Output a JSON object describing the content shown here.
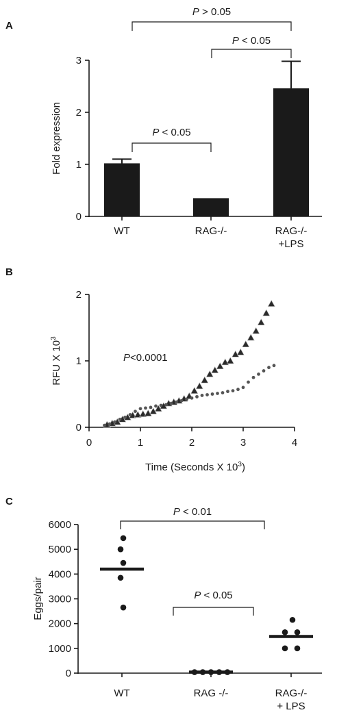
{
  "chart_data": [
    {
      "panel": "A",
      "type": "bar",
      "ylabel": "Fold expression",
      "xlabel": "",
      "ylim": [
        0,
        3
      ],
      "yticks": [
        "0",
        "1",
        "2",
        "3"
      ],
      "categories": [
        [
          "WT"
        ],
        [
          "RAG-/-"
        ],
        [
          "RAG-/-",
          "+LPS"
        ]
      ],
      "values": [
        1.02,
        0.35,
        2.46
      ],
      "errors": [
        0.08,
        0.0,
        0.52
      ],
      "comparisons": [
        {
          "from": 0,
          "to": 1,
          "label": "P < 0.05"
        },
        {
          "from": 1,
          "to": 2,
          "label": "P < 0.05"
        },
        {
          "from": 0,
          "to": 2,
          "label": "P > 0.05"
        }
      ]
    },
    {
      "panel": "B",
      "type": "scatter",
      "xlabel": "Time (Seconds X 10",
      "xlabel_sup": "3",
      "xlabel_end": ")",
      "ylabel": "RFU X 10",
      "ylabel_sup": "3",
      "xlim": [
        0,
        4
      ],
      "ylim": [
        0,
        2
      ],
      "xticks": [
        "0",
        "1",
        "2",
        "3",
        "4"
      ],
      "yticks": [
        "0",
        "1",
        "2"
      ],
      "annotation": "<0.0001",
      "annotation_p": "P",
      "series": [
        {
          "marker": "triangle",
          "x": [
            0.35,
            0.45,
            0.55,
            0.65,
            0.75,
            0.85,
            0.95,
            1.05,
            1.15,
            1.25,
            1.35,
            1.45,
            1.55,
            1.65,
            1.75,
            1.85,
            1.95,
            2.05,
            2.15,
            2.25,
            2.35,
            2.45,
            2.55,
            2.65,
            2.75,
            2.85,
            2.95,
            3.05,
            3.15,
            3.25,
            3.35,
            3.45,
            3.55
          ],
          "y": [
            0.04,
            0.06,
            0.08,
            0.12,
            0.15,
            0.18,
            0.19,
            0.2,
            0.21,
            0.24,
            0.28,
            0.32,
            0.36,
            0.38,
            0.4,
            0.43,
            0.47,
            0.55,
            0.62,
            0.71,
            0.8,
            0.86,
            0.92,
            0.98,
            1.0,
            1.1,
            1.13,
            1.25,
            1.35,
            1.45,
            1.58,
            1.72,
            1.86
          ]
        },
        {
          "marker": "circle",
          "x": [
            0.3,
            0.4,
            0.5,
            0.6,
            0.7,
            0.8,
            0.9,
            1.0,
            1.1,
            1.2,
            1.3,
            1.4,
            1.5,
            1.6,
            1.7,
            1.8,
            1.9,
            2.0,
            2.1,
            2.2,
            2.3,
            2.4,
            2.5,
            2.6,
            2.7,
            2.8,
            2.9,
            3.0,
            3.1,
            3.2,
            3.3,
            3.4,
            3.5,
            3.6
          ],
          "y": [
            0.03,
            0.05,
            0.08,
            0.12,
            0.15,
            0.19,
            0.24,
            0.28,
            0.29,
            0.3,
            0.32,
            0.33,
            0.34,
            0.36,
            0.38,
            0.4,
            0.42,
            0.44,
            0.46,
            0.48,
            0.49,
            0.5,
            0.51,
            0.52,
            0.54,
            0.55,
            0.57,
            0.6,
            0.68,
            0.75,
            0.8,
            0.85,
            0.9,
            0.93
          ]
        }
      ]
    },
    {
      "panel": "C",
      "type": "scatter",
      "ylabel": "Eggs/pair",
      "xlabel": "",
      "ylim": [
        0,
        6000
      ],
      "yticks": [
        "0",
        "1000",
        "2000",
        "3000",
        "4000",
        "5000",
        "6000"
      ],
      "categories": [
        [
          "WT"
        ],
        [
          "RAG -/-"
        ],
        [
          "RAG-/-",
          "+ LPS"
        ]
      ],
      "groups": [
        {
          "mean": 4200,
          "points": [
            5450,
            5000,
            4450,
            3850,
            2650
          ]
        },
        {
          "mean": 40,
          "points": [
            40,
            40,
            40,
            40,
            40
          ]
        },
        {
          "mean": 1480,
          "points": [
            2150,
            1650,
            1650,
            1000,
            1000
          ]
        }
      ],
      "comparisons": [
        {
          "from": 1,
          "to": 2,
          "label": "P < 0.05"
        },
        {
          "from": 0,
          "to": 2,
          "label": "P < 0.01"
        }
      ]
    }
  ],
  "colors": {
    "ink": "#1a1a1a",
    "circle_series": "#555555"
  }
}
